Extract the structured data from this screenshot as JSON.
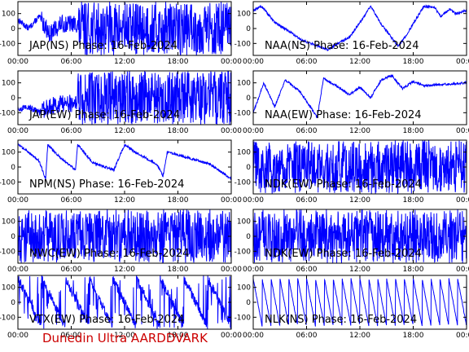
{
  "footer_text": "Dunedin Ultra AARDDVARK",
  "colors": {
    "trace": "#0000ff",
    "axes": "#000000",
    "footer": "#cc0000"
  },
  "chart_data": [
    {
      "title": "JAP(NS) Phase: 16-Feb-2024",
      "type": "line",
      "ylim": [
        -180,
        180
      ],
      "yticks": [
        "100",
        "0",
        "-100"
      ],
      "xticks": [
        "00:00",
        "06:00",
        "12:00",
        "18:00",
        "00:00"
      ],
      "pattern": "dense-after",
      "start": 0.11,
      "knots": [
        [
          0,
          60
        ],
        [
          0.05,
          0
        ],
        [
          0.1,
          80
        ],
        [
          0.15,
          -40
        ],
        [
          0.2,
          30
        ]
      ],
      "fill_from": 0.28
    },
    {
      "title": "NAA(NS) Phase: 16-Feb-2024",
      "type": "line",
      "ylim": [
        -180,
        180
      ],
      "yticks": [
        "100",
        "0",
        "-100"
      ],
      "xticks": [
        "00:00",
        "06:00",
        "12:00",
        "18:00",
        "00:00"
      ],
      "pattern": "sawtooth",
      "knots": [
        [
          0,
          120
        ],
        [
          0.04,
          150
        ],
        [
          0.1,
          40
        ],
        [
          0.17,
          -20
        ],
        [
          0.23,
          -80
        ],
        [
          0.35,
          -140
        ],
        [
          0.45,
          -60
        ],
        [
          0.5,
          40
        ],
        [
          0.55,
          150
        ],
        [
          0.6,
          30
        ],
        [
          0.68,
          -120
        ],
        [
          0.72,
          -40
        ],
        [
          0.8,
          150
        ],
        [
          0.85,
          140
        ],
        [
          0.88,
          80
        ],
        [
          0.92,
          130
        ],
        [
          0.95,
          100
        ],
        [
          1,
          120
        ]
      ]
    },
    {
      "title": "JAP(EW) Phase: 16-Feb-2024",
      "type": "line",
      "ylim": [
        -180,
        180
      ],
      "yticks": [
        "100",
        "0",
        "-100"
      ],
      "xticks": [
        "00:00",
        "06:00",
        "12:00",
        "18:00",
        "00:00"
      ],
      "pattern": "dense-after",
      "start": 0.11,
      "knots": [
        [
          0,
          -80
        ],
        [
          0.05,
          -60
        ],
        [
          0.1,
          -100
        ],
        [
          0.15,
          -60
        ],
        [
          0.2,
          -40
        ]
      ],
      "fill_from": 0.28
    },
    {
      "title": "NAA(EW) Phase: 16-Feb-2024",
      "type": "line",
      "ylim": [
        -180,
        180
      ],
      "yticks": [
        "100",
        "0",
        "-100"
      ],
      "xticks": [
        "00:00",
        "06:00",
        "12:00",
        "18:00",
        "00:00"
      ],
      "pattern": "sawtooth",
      "knots": [
        [
          0,
          -100
        ],
        [
          0.05,
          100
        ],
        [
          0.1,
          -60
        ],
        [
          0.15,
          120
        ],
        [
          0.22,
          40
        ],
        [
          0.3,
          -130
        ],
        [
          0.33,
          130
        ],
        [
          0.4,
          70
        ],
        [
          0.45,
          20
        ],
        [
          0.5,
          70
        ],
        [
          0.55,
          0
        ],
        [
          0.6,
          120
        ],
        [
          0.65,
          150
        ],
        [
          0.7,
          60
        ],
        [
          0.75,
          110
        ],
        [
          0.8,
          80
        ],
        [
          0.9,
          90
        ],
        [
          1,
          100
        ]
      ]
    },
    {
      "title": "NPM(NS) Phase: 16-Feb-2024",
      "type": "line",
      "ylim": [
        -180,
        180
      ],
      "yticks": [
        "100",
        "0",
        "-100"
      ],
      "xticks": [
        "00:00",
        "06:00",
        "12:00",
        "18:00",
        "00:00"
      ],
      "pattern": "ramp",
      "knots": [
        [
          0,
          150
        ],
        [
          0.05,
          100
        ],
        [
          0.1,
          40
        ],
        [
          0.13,
          -80
        ],
        [
          0.14,
          150
        ],
        [
          0.2,
          60
        ],
        [
          0.27,
          -20
        ],
        [
          0.28,
          150
        ],
        [
          0.35,
          30
        ],
        [
          0.45,
          -20
        ],
        [
          0.5,
          150
        ],
        [
          0.55,
          100
        ],
        [
          0.65,
          20
        ],
        [
          0.68,
          -60
        ],
        [
          0.7,
          100
        ],
        [
          0.8,
          60
        ],
        [
          0.9,
          20
        ],
        [
          1,
          -80
        ]
      ]
    },
    {
      "title": "NDK(EW) Phase: 16-Feb-2024",
      "type": "line",
      "ylim": [
        -180,
        180
      ],
      "yticks": [
        "100",
        "0",
        "-100"
      ],
      "xticks": [
        "00:00",
        "06:00",
        "12:00",
        "18:00",
        "00:00"
      ],
      "pattern": "dense"
    },
    {
      "title": "NWC(EW) Phase: 16-Feb-2024",
      "type": "line",
      "ylim": [
        -180,
        180
      ],
      "yticks": [
        "100",
        "0",
        "-100"
      ],
      "xticks": [
        "00:00",
        "06:00",
        "12:00",
        "18:00",
        "00:00"
      ],
      "pattern": "dense"
    },
    {
      "title": "NDK(EW) Phase: 16-Feb-2024",
      "type": "line",
      "ylim": [
        -180,
        180
      ],
      "yticks": [
        "100",
        "0",
        "-100"
      ],
      "xticks": [
        "00:00",
        "06:00",
        "12:00",
        "18:00",
        "00:00"
      ],
      "pattern": "dense"
    },
    {
      "title": "VTX(EW) Phase: 16-Feb-2024",
      "type": "line",
      "ylim": [
        -180,
        180
      ],
      "yticks": [
        "100",
        "0",
        "-100"
      ],
      "xticks": [
        "00:00",
        "06:00",
        "12:00",
        "18:00",
        "00:00"
      ],
      "pattern": "sawtooth-dense"
    },
    {
      "title": "NLK(NS) Phase: 16-Feb-2024",
      "type": "line",
      "ylim": [
        -180,
        180
      ],
      "yticks": [
        "100",
        "0",
        "-100"
      ],
      "xticks": [
        "00:00",
        "06:00",
        "12:00",
        "18:00",
        "00:00"
      ],
      "pattern": "sawtooth-fast"
    }
  ]
}
